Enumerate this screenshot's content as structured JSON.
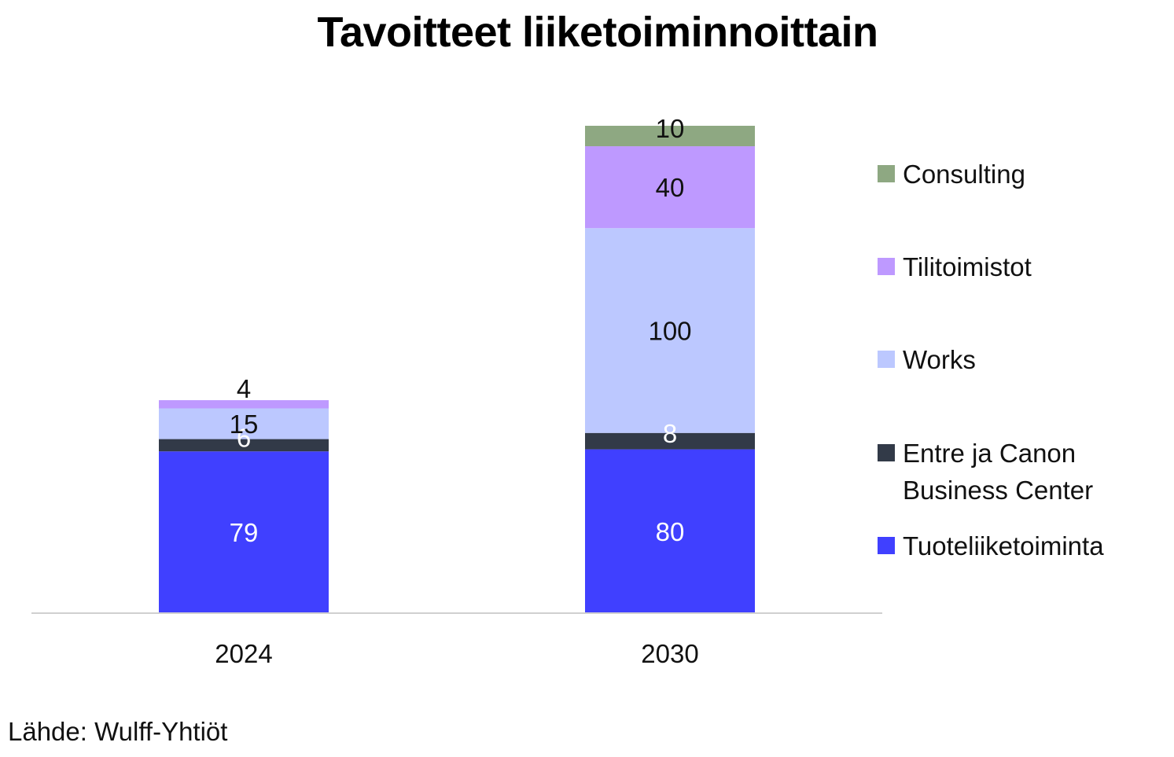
{
  "chart_data": {
    "type": "bar",
    "stacked": true,
    "title": "Tavoitteet liiketoiminnoittain",
    "categories": [
      "2024",
      "2030"
    ],
    "series": [
      {
        "name": "Tuoteliiketoiminta",
        "values": [
          79,
          80
        ],
        "color": "#4040ff",
        "label_color": "#ffffff"
      },
      {
        "name": "Entre ja Canon Business Center",
        "values": [
          6,
          8
        ],
        "color": "#323a48",
        "label_color": "#ffffff"
      },
      {
        "name": "Works",
        "values": [
          15,
          100
        ],
        "color": "#bcc8ff",
        "label_color": "#111111"
      },
      {
        "name": "Tilitoimistot",
        "values": [
          4,
          40
        ],
        "color": "#be99ff",
        "label_color": "#111111"
      },
      {
        "name": "Consulting",
        "values": [
          null,
          10
        ],
        "color": "#8ea882",
        "label_color": "#111111"
      }
    ],
    "legend": {
      "position": "right",
      "order": [
        "Consulting",
        "Tilitoimistot",
        "Works",
        "Entre ja Canon Business Center",
        "Tuoteliiketoiminta"
      ],
      "line_breaks": {
        "Entre ja Canon Business Center": [
          "Entre ja Canon",
          "Business Center"
        ]
      }
    },
    "grid": false,
    "ylim": [
      0,
      238
    ]
  },
  "source": "Lähde: Wulff-Yhtiöt",
  "colors": {
    "axis": "#d0d0d0",
    "text": "#111111"
  }
}
